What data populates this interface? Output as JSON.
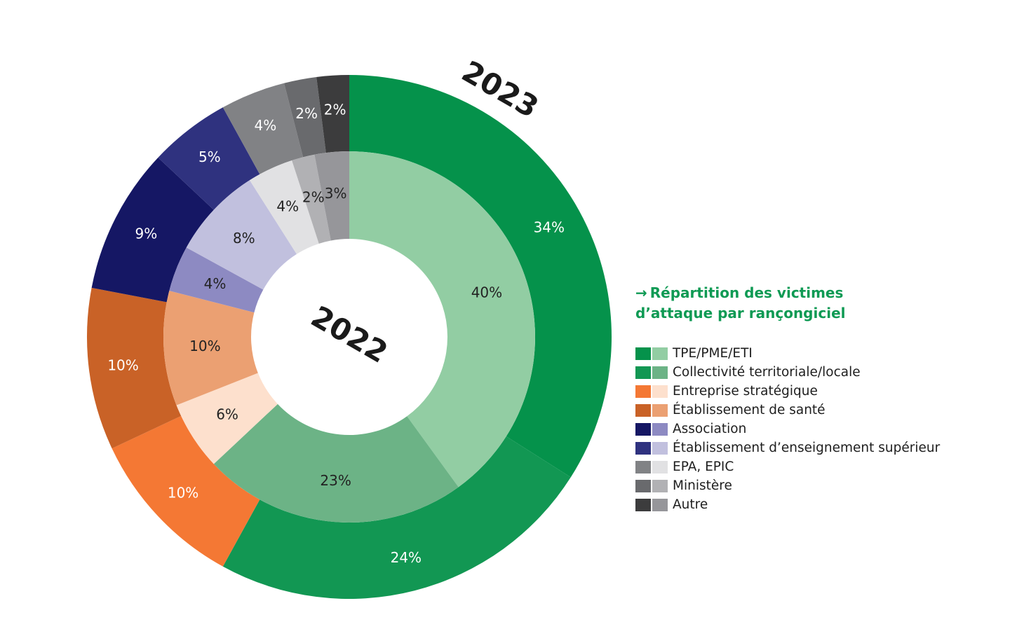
{
  "chart_data": {
    "type": "pie",
    "subtype": "nested-donut",
    "title_line1": "Répartition des victimes",
    "title_line2": "d’attaque par rançongiciel",
    "title_arrow": "→",
    "categories": [
      "TPE/PME/ETI",
      "Collectivité territoriale/locale",
      "Entreprise stratégique",
      "Établissement de santé",
      "Association",
      "Établissement d’enseignement supérieur",
      "EPA, EPIC",
      "Ministère",
      "Autre"
    ],
    "legend_placement": "right",
    "series": [
      {
        "name": "2022",
        "ring": "inner",
        "values": [
          40,
          23,
          6,
          10,
          4,
          8,
          4,
          2,
          3
        ],
        "labels": [
          "40%",
          "23%",
          "6%",
          "10%",
          "4%",
          "8%",
          "4%",
          "2%",
          "3%"
        ],
        "colors": [
          "#92cda3",
          "#6cb386",
          "#fde0cd",
          "#eba072",
          "#8d8ac2",
          "#c1c0de",
          "#e1e1e3",
          "#b1b1b4",
          "#96969a"
        ]
      },
      {
        "name": "2023",
        "ring": "outer",
        "values": [
          34,
          24,
          10,
          10,
          9,
          5,
          4,
          2,
          2
        ],
        "labels": [
          "34%",
          "24%",
          "10%",
          "10%",
          "9%",
          "5%",
          "4%",
          "2%",
          "2%"
        ],
        "colors": [
          "#05924b",
          "#129753",
          "#f47834",
          "#c96227",
          "#151764",
          "#2f327f",
          "#818285",
          "#696a6d",
          "#3c3c3d"
        ]
      }
    ]
  }
}
